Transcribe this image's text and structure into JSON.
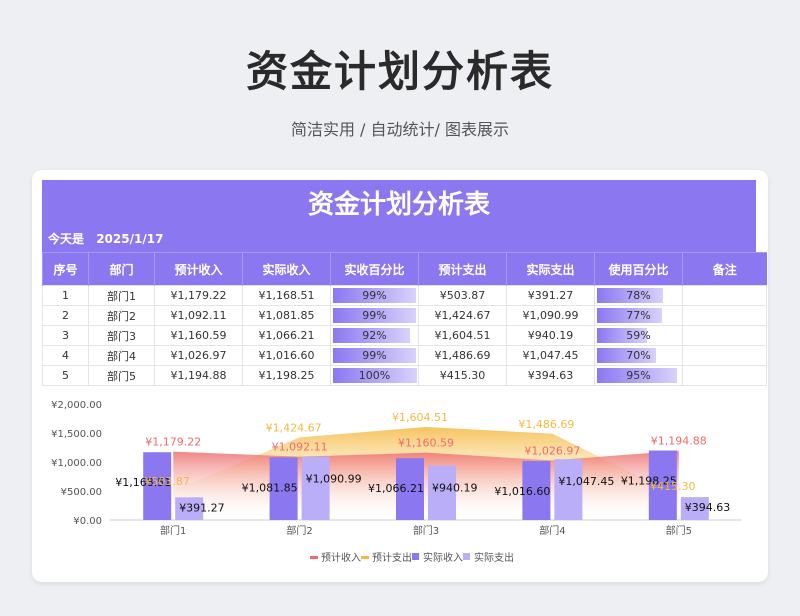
{
  "page": {
    "title": "资金计划分析表",
    "subtitle": "简洁实用 / 自动统计/ 图表展示"
  },
  "sheet": {
    "title": "资金计划分析表",
    "today_label": "今天是",
    "today_value": "2025/1/17",
    "headers": [
      "序号",
      "部门",
      "预计收入",
      "实际收入",
      "实收百分比",
      "预计支出",
      "实际支出",
      "使用百分比",
      "备注"
    ],
    "rows": [
      {
        "no": "1",
        "dept": "部门1",
        "est_income": "¥1,179.22",
        "act_income": "¥1,168.51",
        "income_pct": "99%",
        "income_pct_val": 99,
        "est_expense": "¥503.87",
        "act_expense": "¥391.27",
        "use_pct": "78%",
        "use_pct_val": 78,
        "note": ""
      },
      {
        "no": "2",
        "dept": "部门2",
        "est_income": "¥1,092.11",
        "act_income": "¥1,081.85",
        "income_pct": "99%",
        "income_pct_val": 99,
        "est_expense": "¥1,424.67",
        "act_expense": "¥1,090.99",
        "use_pct": "77%",
        "use_pct_val": 77,
        "note": ""
      },
      {
        "no": "3",
        "dept": "部门3",
        "est_income": "¥1,160.59",
        "act_income": "¥1,066.21",
        "income_pct": "92%",
        "income_pct_val": 92,
        "est_expense": "¥1,604.51",
        "act_expense": "¥940.19",
        "use_pct": "59%",
        "use_pct_val": 59,
        "note": ""
      },
      {
        "no": "4",
        "dept": "部门4",
        "est_income": "¥1,026.97",
        "act_income": "¥1,016.60",
        "income_pct": "99%",
        "income_pct_val": 99,
        "est_expense": "¥1,486.69",
        "act_expense": "¥1,047.45",
        "use_pct": "70%",
        "use_pct_val": 70,
        "note": ""
      },
      {
        "no": "5",
        "dept": "部门5",
        "est_income": "¥1,194.88",
        "act_income": "¥1,198.25",
        "income_pct": "100%",
        "income_pct_val": 100,
        "est_expense": "¥415.30",
        "act_expense": "¥394.63",
        "use_pct": "95%",
        "use_pct_val": 95,
        "note": ""
      }
    ]
  },
  "colors": {
    "accent": "#8b78f0",
    "actual_income": "#8b78f0",
    "actual_expense": "#b9aef7",
    "est_income": "#ee6b6b",
    "est_expense": "#f5b940"
  },
  "chart_data": {
    "type": "bar",
    "categories": [
      "部门1",
      "部门2",
      "部门3",
      "部门4",
      "部门5"
    ],
    "ylim": [
      0,
      2000
    ],
    "yticks": [
      0,
      500,
      1000,
      1500,
      2000
    ],
    "ytick_labels": [
      "¥0.00",
      "¥500.00",
      "¥1,000.00",
      "¥1,500.00",
      "¥2,000.00"
    ],
    "legend_position": "bottom",
    "series": [
      {
        "name": "预计收入",
        "kind": "area",
        "values": [
          1179.22,
          1092.11,
          1160.59,
          1026.97,
          1194.88
        ],
        "labels": [
          "¥1,179.22",
          "¥1,092.11",
          "¥1,160.59",
          "¥1,026.97",
          "¥1,194.88"
        ]
      },
      {
        "name": "预计支出",
        "kind": "area",
        "values": [
          503.87,
          1424.67,
          1604.51,
          1486.69,
          415.3
        ],
        "labels": [
          "¥503.87",
          "¥1,424.67",
          "¥1,604.51",
          "¥1,486.69",
          "¥415.30"
        ]
      },
      {
        "name": "实际收入",
        "kind": "bar",
        "values": [
          1168.51,
          1081.85,
          1066.21,
          1016.6,
          1198.25
        ],
        "labels": [
          "¥1,168.51",
          "¥1,081.85",
          "¥1,066.21",
          "¥1,016.60",
          "¥1,198.25"
        ]
      },
      {
        "name": "实际支出",
        "kind": "bar",
        "values": [
          391.27,
          1090.99,
          940.19,
          1047.45,
          394.63
        ],
        "labels": [
          "¥391.27",
          "¥1,090.99",
          "¥940.19",
          "¥1,047.45",
          "¥394.63"
        ]
      }
    ]
  }
}
